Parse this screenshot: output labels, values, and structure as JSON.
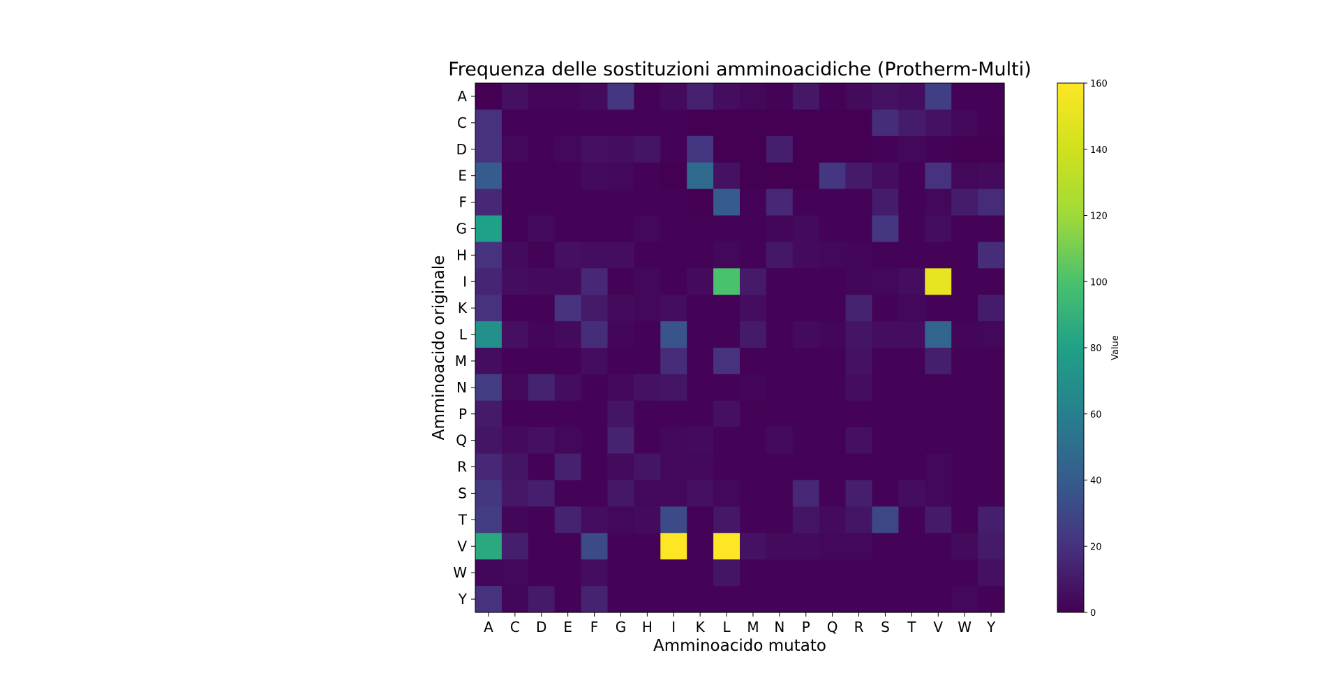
{
  "chart_data": {
    "type": "heatmap",
    "title": "Frequenza delle sostituzioni amminoacidiche (Protherm-Multi)",
    "xlabel": "Amminoacido mutato",
    "ylabel": "Amminoacido originale",
    "x_categories": [
      "A",
      "C",
      "D",
      "E",
      "F",
      "G",
      "H",
      "I",
      "K",
      "L",
      "M",
      "N",
      "P",
      "Q",
      "R",
      "S",
      "T",
      "V",
      "W",
      "Y"
    ],
    "y_categories": [
      "A",
      "C",
      "D",
      "E",
      "F",
      "G",
      "H",
      "I",
      "K",
      "L",
      "M",
      "N",
      "P",
      "Q",
      "R",
      "S",
      "T",
      "V",
      "W",
      "Y"
    ],
    "values": [
      [
        0,
        6,
        2,
        2,
        4,
        22,
        1,
        4,
        13,
        5,
        3,
        1,
        9,
        1,
        4,
        7,
        5,
        26,
        1,
        1
      ],
      [
        20,
        1,
        1,
        1,
        1,
        1,
        1,
        1,
        0,
        0,
        0,
        0,
        0,
        0,
        0,
        18,
        11,
        7,
        3,
        1
      ],
      [
        20,
        3,
        1,
        3,
        6,
        5,
        8,
        1,
        22,
        0,
        0,
        12,
        0,
        0,
        0,
        1,
        3,
        1,
        0,
        0
      ],
      [
        40,
        1,
        1,
        1,
        4,
        3,
        1,
        0,
        48,
        7,
        0,
        0,
        0,
        22,
        10,
        5,
        1,
        20,
        3,
        4
      ],
      [
        16,
        1,
        1,
        1,
        1,
        1,
        1,
        1,
        0,
        40,
        1,
        16,
        1,
        1,
        1,
        11,
        1,
        3,
        11,
        17
      ],
      [
        80,
        1,
        4,
        1,
        1,
        1,
        3,
        1,
        1,
        1,
        1,
        2,
        4,
        1,
        1,
        22,
        1,
        5,
        1,
        1
      ],
      [
        20,
        4,
        1,
        6,
        5,
        5,
        1,
        1,
        1,
        3,
        1,
        9,
        4,
        3,
        2,
        1,
        1,
        1,
        1,
        18
      ],
      [
        15,
        5,
        4,
        4,
        16,
        1,
        3,
        1,
        4,
        100,
        10,
        1,
        1,
        1,
        2,
        3,
        5,
        150,
        1,
        1
      ],
      [
        20,
        1,
        1,
        20,
        10,
        4,
        3,
        5,
        1,
        1,
        5,
        1,
        1,
        1,
        14,
        1,
        3,
        1,
        1,
        11
      ],
      [
        70,
        6,
        2,
        4,
        18,
        2,
        1,
        36,
        1,
        1,
        10,
        1,
        4,
        2,
        8,
        5,
        5,
        45,
        2,
        3
      ],
      [
        5,
        1,
        1,
        1,
        5,
        1,
        1,
        18,
        1,
        20,
        1,
        1,
        1,
        1,
        7,
        1,
        1,
        12,
        1,
        1
      ],
      [
        25,
        3,
        14,
        5,
        1,
        3,
        7,
        8,
        1,
        1,
        2,
        1,
        1,
        1,
        5,
        1,
        1,
        1,
        1,
        1
      ],
      [
        10,
        1,
        1,
        1,
        1,
        8,
        1,
        1,
        1,
        6,
        1,
        1,
        1,
        1,
        1,
        1,
        1,
        1,
        1,
        1
      ],
      [
        8,
        4,
        6,
        3,
        1,
        14,
        1,
        3,
        4,
        1,
        1,
        4,
        1,
        1,
        6,
        1,
        1,
        1,
        1,
        1
      ],
      [
        16,
        8,
        1,
        13,
        1,
        4,
        8,
        3,
        3,
        1,
        1,
        1,
        1,
        1,
        1,
        1,
        1,
        3,
        1,
        1
      ],
      [
        22,
        9,
        12,
        1,
        1,
        9,
        3,
        3,
        6,
        3,
        1,
        1,
        16,
        1,
        12,
        1,
        5,
        3,
        1,
        1
      ],
      [
        25,
        2,
        1,
        14,
        5,
        3,
        4,
        32,
        1,
        9,
        1,
        1,
        8,
        4,
        8,
        30,
        1,
        10,
        1,
        12
      ],
      [
        85,
        12,
        1,
        1,
        32,
        1,
        1,
        160,
        1,
        160,
        7,
        4,
        4,
        3,
        3,
        1,
        1,
        1,
        4,
        10
      ],
      [
        2,
        3,
        1,
        1,
        5,
        1,
        1,
        1,
        1,
        8,
        1,
        1,
        1,
        1,
        1,
        1,
        1,
        1,
        1,
        6
      ],
      [
        20,
        2,
        10,
        1,
        14,
        1,
        1,
        1,
        1,
        1,
        1,
        1,
        1,
        1,
        1,
        1,
        1,
        1,
        3,
        1
      ]
    ],
    "vmin": 0,
    "vmax": 160,
    "colormap": "viridis",
    "colorbar": {
      "label": "Value",
      "ticks": [
        0,
        20,
        40,
        60,
        80,
        100,
        120,
        140,
        160
      ]
    }
  }
}
